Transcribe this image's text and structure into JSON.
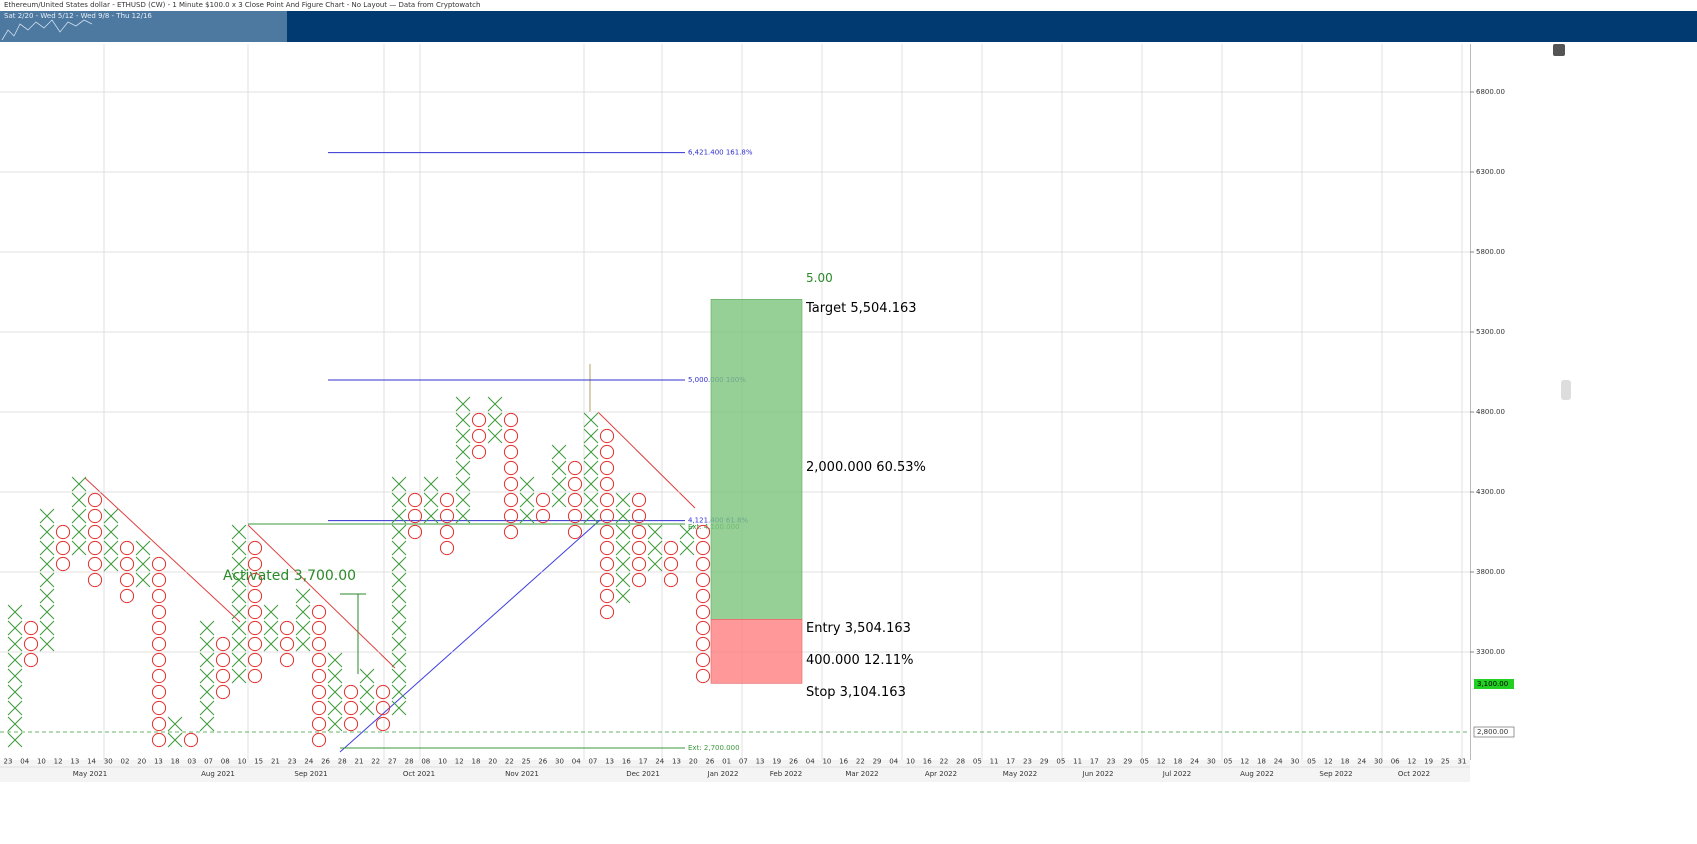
{
  "header": {
    "title": "Ethereum/United States dollar - ETHUSD (CW) - 1 Minute $100.0 x 3 Close Point And Figure Chart - No Layout — Data from Cryptowatch",
    "navigator": "Sat 2/20 - Wed 5/12 - Wed 9/8 - Thu 12/16"
  },
  "chart_data": {
    "type": "point_and_figure",
    "box_size": 100,
    "x_color": "#3a9a3a",
    "o_color": "#e03030",
    "columns": [
      {
        "kind": "X",
        "low": 2700,
        "high": 3500
      },
      {
        "kind": "O",
        "low": 3200,
        "high": 3400
      },
      {
        "kind": "X",
        "low": 3300,
        "high": 4100
      },
      {
        "kind": "O",
        "low": 3800,
        "high": 4000
      },
      {
        "kind": "X",
        "low": 3900,
        "high": 4300
      },
      {
        "kind": "O",
        "low": 3700,
        "high": 4200
      },
      {
        "kind": "X",
        "low": 3800,
        "high": 4100
      },
      {
        "kind": "O",
        "low": 3600,
        "high": 3900
      },
      {
        "kind": "X",
        "low": 3700,
        "high": 3900
      },
      {
        "kind": "O",
        "low": 2700,
        "high": 3800
      },
      {
        "kind": "X",
        "low": 2700,
        "high": 2800
      },
      {
        "kind": "O",
        "low": 2700,
        "high": 2700
      },
      {
        "kind": "X",
        "low": 2800,
        "high": 3400
      },
      {
        "kind": "O",
        "low": 3000,
        "high": 3300
      },
      {
        "kind": "X",
        "low": 3100,
        "high": 4000
      },
      {
        "kind": "O",
        "low": 3100,
        "high": 3900
      },
      {
        "kind": "X",
        "low": 3300,
        "high": 3500
      },
      {
        "kind": "O",
        "low": 3200,
        "high": 3400
      },
      {
        "kind": "X",
        "low": 3300,
        "high": 3600
      },
      {
        "kind": "O",
        "low": 2700,
        "high": 3500
      },
      {
        "kind": "X",
        "low": 2800,
        "high": 3200
      },
      {
        "kind": "O",
        "low": 2800,
        "high": 3000
      },
      {
        "kind": "X",
        "low": 2900,
        "high": 3100
      },
      {
        "kind": "O",
        "low": 2800,
        "high": 3000
      },
      {
        "kind": "X",
        "low": 2900,
        "high": 4300
      },
      {
        "kind": "O",
        "low": 4000,
        "high": 4200
      },
      {
        "kind": "X",
        "low": 4100,
        "high": 4300
      },
      {
        "kind": "O",
        "low": 3900,
        "high": 4200
      },
      {
        "kind": "X",
        "low": 4100,
        "high": 4800
      },
      {
        "kind": "O",
        "low": 4500,
        "high": 4700
      },
      {
        "kind": "X",
        "low": 4600,
        "high": 4800
      },
      {
        "kind": "O",
        "low": 4000,
        "high": 4700
      },
      {
        "kind": "X",
        "low": 4100,
        "high": 4300
      },
      {
        "kind": "O",
        "low": 4100,
        "high": 4200
      },
      {
        "kind": "X",
        "low": 4200,
        "high": 4500
      },
      {
        "kind": "O",
        "low": 4000,
        "high": 4400
      },
      {
        "kind": "X",
        "low": 4100,
        "high": 4700
      },
      {
        "kind": "O",
        "low": 3500,
        "high": 4600
      },
      {
        "kind": "X",
        "low": 3600,
        "high": 4200
      },
      {
        "kind": "O",
        "low": 3700,
        "high": 4200
      },
      {
        "kind": "X",
        "low": 3800,
        "high": 4000
      },
      {
        "kind": "O",
        "low": 3700,
        "high": 3900
      },
      {
        "kind": "X",
        "low": 3900,
        "high": 4000
      },
      {
        "kind": "O",
        "low": 3100,
        "high": 4000
      }
    ],
    "ylim": [
      2625,
      7100
    ],
    "yticks": [
      {
        "value": 6800,
        "label": "6800.00"
      },
      {
        "value": 6300,
        "label": "6300.00"
      },
      {
        "value": 5800,
        "label": "5800.00"
      },
      {
        "value": 5300,
        "label": "5300.00"
      },
      {
        "value": 4800,
        "label": "4800.00"
      },
      {
        "value": 4300,
        "label": "4300.00"
      },
      {
        "value": 3800,
        "label": "3800.00"
      },
      {
        "value": 3300,
        "label": "3300.00"
      }
    ],
    "last_price": {
      "value": 3100,
      "label": "3,100.00"
    },
    "hline": {
      "value": 2800,
      "label": "2,800.00"
    },
    "fib_lines": [
      {
        "value": 6421.4,
        "label": "6,421.400  161.8%"
      },
      {
        "value": 5000,
        "label": "5,000.000  100%"
      },
      {
        "value": 4121.4,
        "label": "4,121.400  61.8%"
      }
    ],
    "ext_lines": [
      {
        "value": 4100,
        "label": "Ext: 4,100.000"
      },
      {
        "value": 2700,
        "label": "Ext: 2,700.000"
      }
    ],
    "activated": {
      "value": 3700,
      "label": "Activated 3,700.00"
    },
    "position": {
      "target": 5504.163,
      "entry": 3504.163,
      "stop": 3104.163,
      "ratio_label": "5.00",
      "target_label": "Target  5,504.163",
      "reward_label": "2,000.000  60.53%",
      "entry_label": "Entry  3,504.163",
      "risk_label": "400.000  12.11%",
      "stop_label": "Stop  3,104.163"
    },
    "date_labels": [
      "23",
      "04",
      "10",
      "12",
      "13",
      "14",
      "30",
      "02",
      "20",
      "13",
      "18",
      "03",
      "07",
      "08",
      "10",
      "15",
      "21",
      "23",
      "24",
      "26",
      "28",
      "21",
      "22",
      "27",
      "28",
      "08",
      "10",
      "12",
      "18",
      "20",
      "22",
      "25",
      "26",
      "30",
      "04",
      "07",
      "13",
      "16",
      "17",
      "24",
      "13",
      "20",
      "26",
      "01",
      "07",
      "13",
      "19",
      "26",
      "04",
      "10",
      "16",
      "22",
      "29",
      "04",
      "10",
      "16",
      "22",
      "28",
      "05",
      "11",
      "17",
      "23",
      "29",
      "05",
      "11",
      "17",
      "23",
      "29",
      "05",
      "12",
      "18",
      "24",
      "30",
      "05",
      "12",
      "18",
      "24",
      "30",
      "05",
      "12",
      "18",
      "24",
      "30",
      "06",
      "12",
      "19",
      "25",
      "31"
    ],
    "month_labels": [
      "May 2021",
      "Aug 2021",
      "Sep 2021",
      "Oct 2021",
      "Nov 2021",
      "Dec 2021",
      "Jan 2022",
      "Feb 2022",
      "Mar 2022",
      "Apr 2022",
      "May 2022",
      "Jun 2022",
      "Jul 2022",
      "Aug 2022",
      "Sep 2022",
      "Oct 2022"
    ]
  }
}
